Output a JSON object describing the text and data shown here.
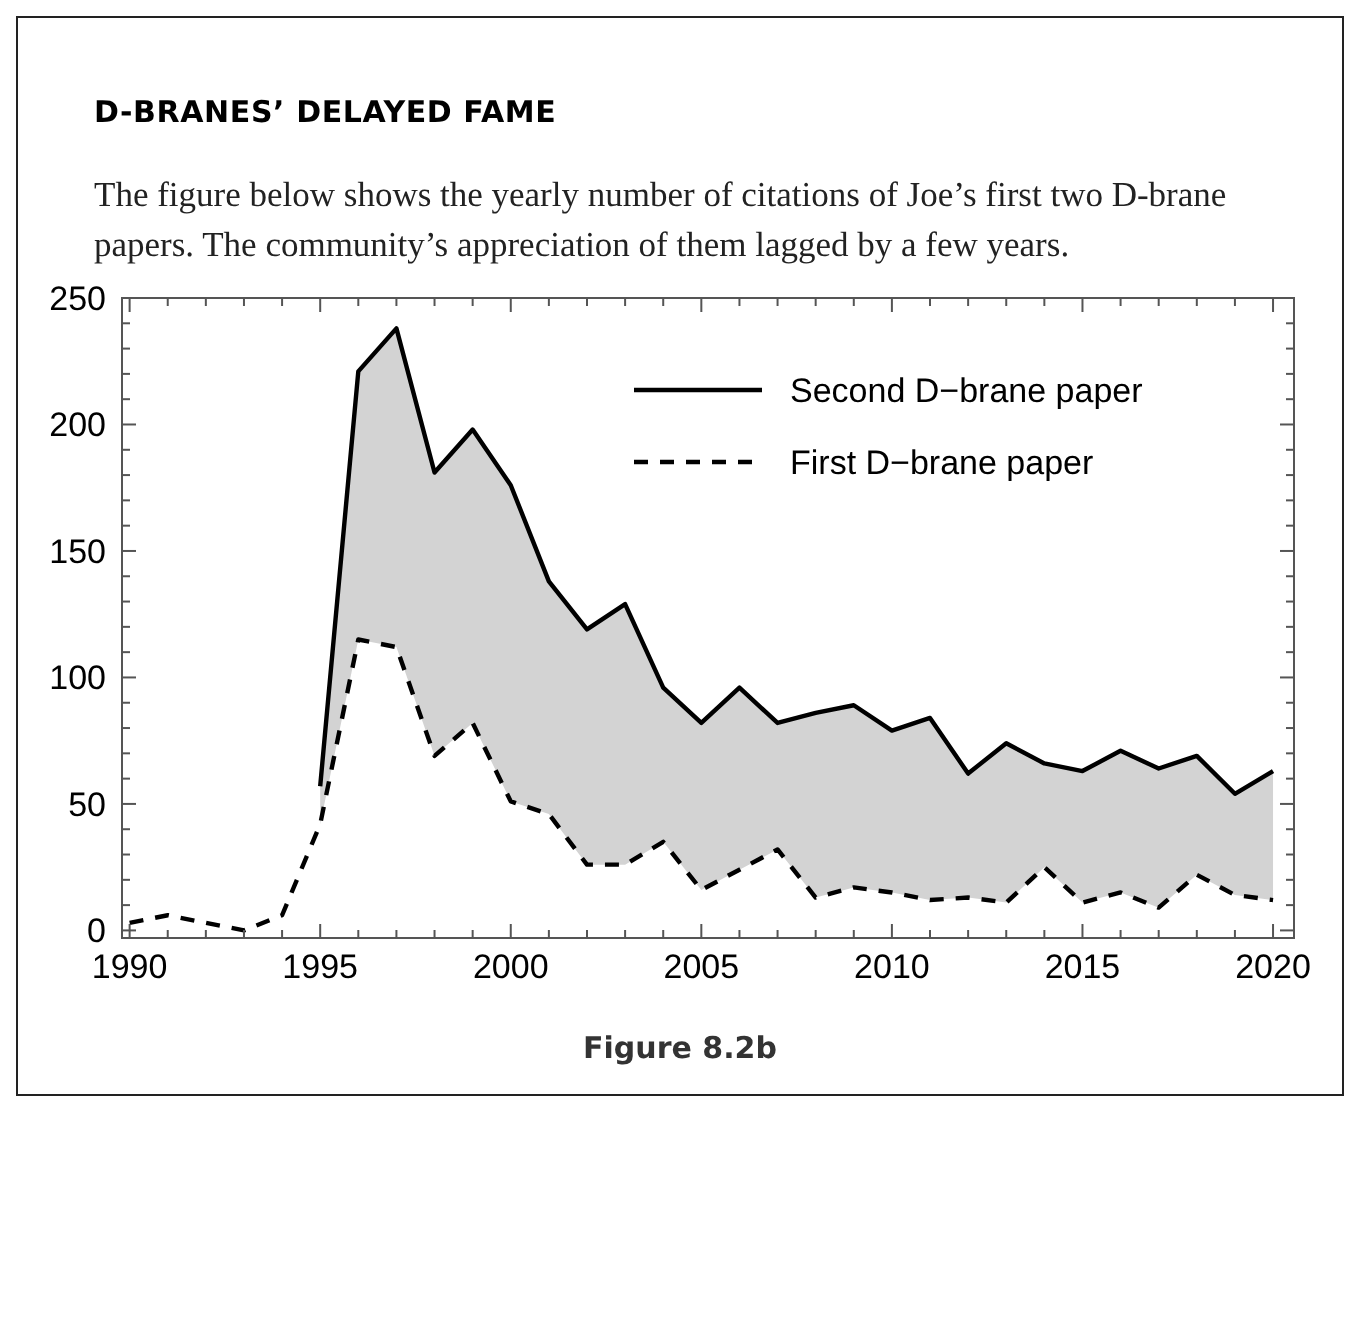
{
  "chart_data": {
    "type": "line",
    "title": "D-BRANES’ DELAYED FAME",
    "subtitle": "The figure below shows the yearly number of citations of Joe’s first two D-brane papers. The community’s appreciation of them lagged by a few years.",
    "annotations": [
      "Figure 8.2b"
    ],
    "xlim": [
      1989.8,
      2020.55
    ],
    "ylim": [
      -3,
      250
    ],
    "xticks": [
      1990,
      {
        "value": 1991,
        "label": null
      },
      {
        "value": 1992,
        "label": null
      },
      {
        "value": 1993,
        "label": null
      },
      {
        "value": 1994,
        "label": null
      },
      1995,
      {
        "value": 1996,
        "label": null
      },
      {
        "value": 1997,
        "label": null
      },
      {
        "value": 1998,
        "label": null
      },
      {
        "value": 1999,
        "label": null
      },
      2000,
      {
        "value": 2001,
        "label": null
      },
      {
        "value": 2002,
        "label": null
      },
      {
        "value": 2003,
        "label": null
      },
      {
        "value": 2004,
        "label": null
      },
      2005,
      {
        "value": 2006,
        "label": null
      },
      {
        "value": 2007,
        "label": null
      },
      {
        "value": 2008,
        "label": null
      },
      {
        "value": 2009,
        "label": null
      },
      2010,
      {
        "value": 2011,
        "label": null
      },
      {
        "value": 2012,
        "label": null
      },
      {
        "value": 2013,
        "label": null
      },
      {
        "value": 2014,
        "label": null
      },
      2015,
      {
        "value": 2016,
        "label": null
      },
      {
        "value": 2017,
        "label": null
      },
      {
        "value": 2018,
        "label": null
      },
      {
        "value": 2019,
        "label": null
      },
      2020
    ],
    "yticks": [
      0,
      {
        "value": 10,
        "label": null
      },
      {
        "value": 20,
        "label": null
      },
      {
        "value": 30,
        "label": null
      },
      {
        "value": 40,
        "label": null
      },
      50,
      {
        "value": 60,
        "label": null
      },
      {
        "value": 70,
        "label": null
      },
      {
        "value": 80,
        "label": null
      },
      {
        "value": 90,
        "label": null
      },
      100,
      {
        "value": 110,
        "label": null
      },
      {
        "value": 120,
        "label": null
      },
      {
        "value": 130,
        "label": null
      },
      {
        "value": 140,
        "label": null
      },
      150,
      {
        "value": 160,
        "label": null
      },
      {
        "value": 170,
        "label": null
      },
      {
        "value": 180,
        "label": null
      },
      {
        "value": 190,
        "label": null
      },
      200,
      {
        "value": 210,
        "label": null
      },
      {
        "value": 220,
        "label": null
      },
      {
        "value": 230,
        "label": null
      },
      {
        "value": 240,
        "label": null
      },
      250
    ],
    "grid": false,
    "legend": "top right",
    "marker": "none",
    "series": [
      {
        "name": "Second D−brane paper",
        "color": "#000000",
        "line_style": "solid",
        "x": [
          1995,
          1996,
          1997,
          1998,
          1999,
          2000,
          2001,
          2002,
          2003,
          2004,
          2005,
          2006,
          2007,
          2008,
          2009,
          2010,
          2011,
          2012,
          2013,
          2014,
          2015,
          2016,
          2017,
          2018,
          2019,
          2020
        ],
        "values": [
          57,
          221,
          238,
          181,
          198,
          176,
          138,
          119,
          129,
          96,
          82,
          96,
          82,
          86,
          89,
          79,
          84,
          62,
          74,
          66,
          63,
          71,
          64,
          69,
          54,
          63
        ],
        "lower": [
          42,
          115,
          112,
          69,
          82,
          51,
          46,
          26,
          26,
          35,
          16,
          24,
          32,
          13,
          17,
          15,
          12,
          13,
          11,
          25,
          11,
          15,
          9,
          22,
          14,
          12
        ],
        "upper": [
          57,
          221,
          238,
          181,
          198,
          176,
          138,
          119,
          129,
          96,
          82,
          96,
          82,
          86,
          89,
          79,
          84,
          62,
          74,
          66,
          63,
          71,
          64,
          69,
          54,
          63
        ]
      },
      {
        "name": "First D−brane paper",
        "color": "#000000",
        "line_style": "dashed",
        "x": [
          1990,
          1991,
          1992,
          1993,
          1994,
          1995,
          1996,
          1997,
          1998,
          1999,
          2000,
          2001,
          2002,
          2003,
          2004,
          2005,
          2006,
          2007,
          2008,
          2009,
          2010,
          2011,
          2012,
          2013,
          2014,
          2015,
          2016,
          2017,
          2018,
          2019,
          2020
        ],
        "values": [
          3,
          6,
          3,
          0,
          6,
          42,
          115,
          112,
          69,
          82,
          51,
          46,
          26,
          26,
          35,
          16,
          24,
          32,
          13,
          17,
          15,
          12,
          13,
          11,
          25,
          11,
          15,
          9,
          22,
          14,
          12
        ]
      }
    ]
  }
}
